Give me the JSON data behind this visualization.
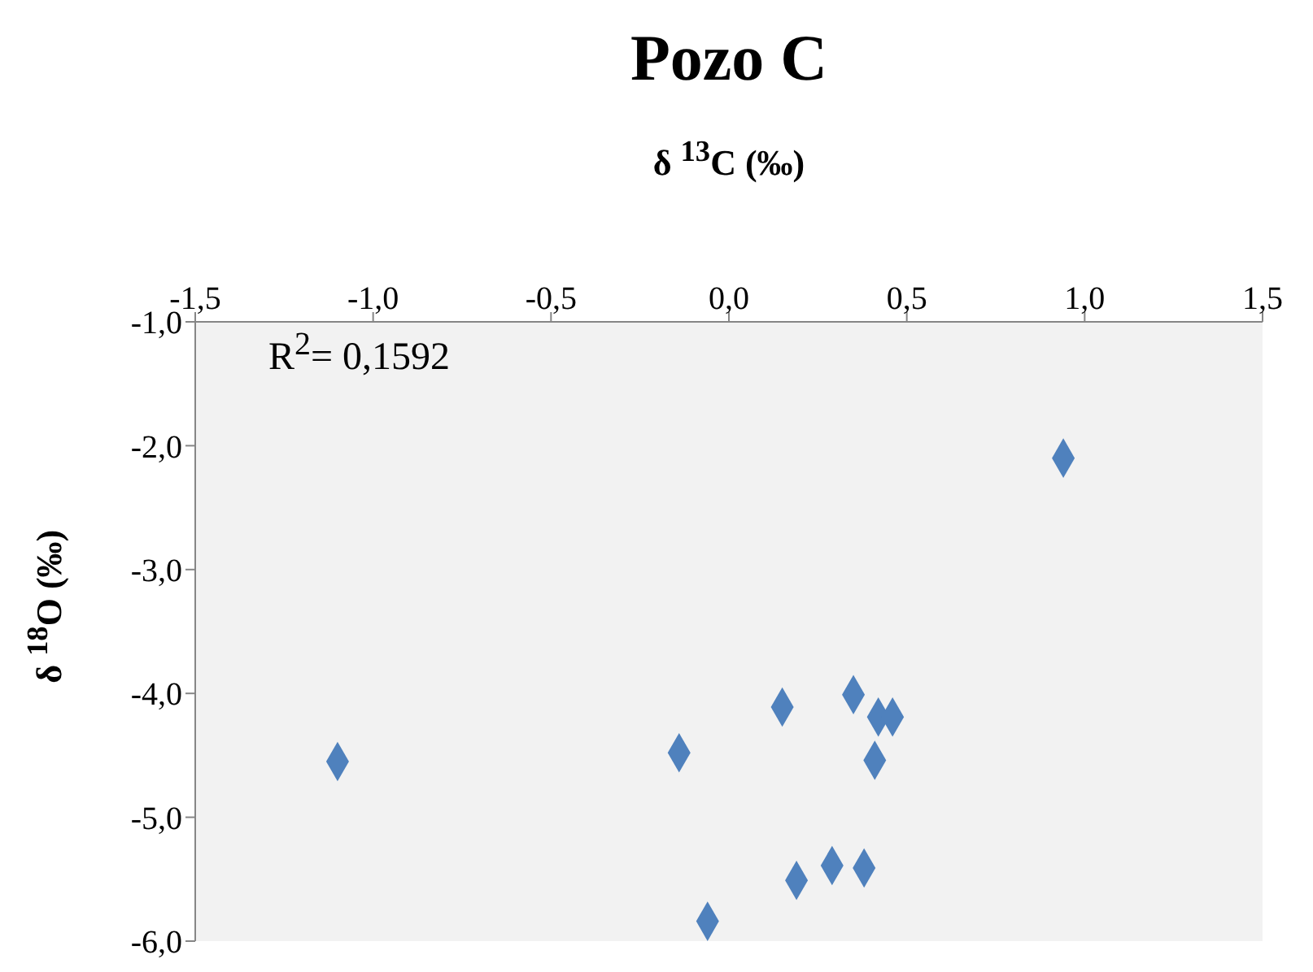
{
  "chart_data": {
    "type": "scatter",
    "title": "Pozo C",
    "xlabel": "δ $^{13}$C (‰)",
    "ylabel": "δ $^{18}$O (‰)",
    "annotations": [
      "R$^{2}$= 0,1592"
    ],
    "marker": "diamond",
    "xlim": [
      -1.5,
      1.5
    ],
    "xticks": [
      {
        "value": -1.5,
        "label": "-1,5"
      },
      {
        "value": -1,
        "label": "-1,0"
      },
      {
        "value": -0.5,
        "label": "-0,5"
      },
      {
        "value": 0,
        "label": "0,0"
      },
      {
        "value": 0.5,
        "label": "0,5"
      },
      {
        "value": 1,
        "label": "1,0"
      },
      {
        "value": 1.5,
        "label": "1,5"
      }
    ],
    "ylim": [
      -6,
      -1
    ],
    "yticks": [
      {
        "value": -6,
        "label": "-6,0"
      },
      {
        "value": -5,
        "label": "-5,0"
      },
      {
        "value": -4,
        "label": "-4,0"
      },
      {
        "value": -3,
        "label": "-3,0"
      },
      {
        "value": -2,
        "label": "-2,0"
      },
      {
        "value": -1,
        "label": "-1,0"
      }
    ],
    "series": [
      {
        "color": "#4f81bd",
        "x": [
          0.94,
          -1.1,
          -0.14,
          0.15,
          0.35,
          0.42,
          0.46,
          0.41,
          -0.06,
          0.19,
          0.29,
          0.38
        ],
        "values": [
          -2.1,
          -4.55,
          -4.48,
          -4.11,
          -4.01,
          -4.19,
          -4.19,
          -4.54,
          -5.84,
          -5.51,
          -5.39,
          -5.41
        ]
      }
    ]
  }
}
